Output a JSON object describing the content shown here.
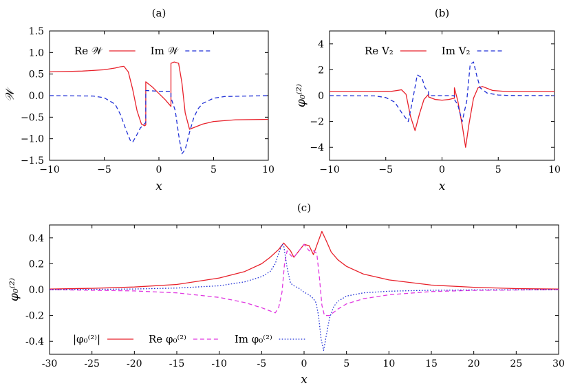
{
  "chart_data": [
    {
      "type": "line",
      "panel": "(a)",
      "xlabel": "x",
      "ylabel": "𝒲",
      "xlim": [
        -10,
        10
      ],
      "ylim": [
        -1.5,
        1.5
      ],
      "xticks": [
        -10,
        -5,
        0,
        5,
        10
      ],
      "xtick_labels": [
        "−10",
        "−5",
        "0",
        "5",
        "10"
      ],
      "yticks": [
        -1.5,
        -1.0,
        -0.5,
        0.0,
        0.5,
        1.0,
        1.5
      ],
      "ytick_labels": [
        "−1.5",
        "−1.0",
        "−0.5",
        "0.0",
        "0.5",
        "1.0",
        "1.5"
      ],
      "legend_position": "top",
      "series": [
        {
          "name": "Re 𝒲",
          "color": "#e8202a",
          "dash": "solid",
          "x": [
            -10,
            -7,
            -5,
            -4,
            -3.5,
            -3.2,
            -2.8,
            -2.4,
            -2.0,
            -1.6,
            -1.3,
            -1.2,
            -1.2,
            -0.6,
            0,
            0.6,
            1.1,
            1.1,
            1.4,
            1.8,
            2.1,
            2.4,
            2.8,
            3.2,
            4,
            5,
            7,
            10
          ],
          "y": [
            0.55,
            0.57,
            0.6,
            0.64,
            0.67,
            0.68,
            0.55,
            0.15,
            -0.35,
            -0.66,
            -0.7,
            -0.68,
            0.32,
            0.2,
            0.05,
            -0.1,
            -0.25,
            0.75,
            0.78,
            0.75,
            0.3,
            -0.4,
            -0.78,
            -0.74,
            -0.66,
            -0.6,
            -0.56,
            -0.55
          ]
        },
        {
          "name": "Im 𝒲",
          "color": "#1f2fd6",
          "dash": "dashed",
          "x": [
            -10,
            -6,
            -5,
            -4,
            -3.5,
            -3,
            -2.6,
            -2.4,
            -2.1,
            -1.7,
            -1.3,
            -1.2,
            -1.2,
            0,
            1.1,
            1.1,
            1.5,
            1.8,
            2.1,
            2.4,
            2.8,
            3.2,
            3.6,
            4,
            5,
            6,
            10
          ],
          "y": [
            0.0,
            -0.01,
            -0.05,
            -0.2,
            -0.45,
            -0.8,
            -1.05,
            -1.08,
            -0.95,
            -0.75,
            -0.65,
            -0.62,
            0.12,
            0.1,
            0.1,
            -0.05,
            -0.35,
            -0.9,
            -1.35,
            -1.25,
            -0.85,
            -0.5,
            -0.3,
            -0.18,
            -0.06,
            -0.02,
            0.0
          ]
        }
      ]
    },
    {
      "type": "line",
      "panel": "(b)",
      "xlabel": "x",
      "ylabel": "φ₀⁽²⁾",
      "xlim": [
        -10,
        10
      ],
      "ylim": [
        -5,
        5
      ],
      "xticks": [
        -10,
        -5,
        0,
        5,
        10
      ],
      "xtick_labels": [
        "−10",
        "−5",
        "0",
        "5",
        "10"
      ],
      "yticks": [
        -4,
        -2,
        0,
        2,
        4
      ],
      "ytick_labels": [
        "−4",
        "−2",
        "0",
        "2",
        "4"
      ],
      "legend_position": "top",
      "series": [
        {
          "name": "Re V₂",
          "color": "#e8202a",
          "dash": "solid",
          "x": [
            -10,
            -6,
            -4.5,
            -3.6,
            -3.2,
            -2.8,
            -2.4,
            -2.0,
            -1.6,
            -1.2,
            -1.2,
            -0.6,
            0,
            0.6,
            1.1,
            1.1,
            1.4,
            1.8,
            2.1,
            2.4,
            2.8,
            3.2,
            3.6,
            4.5,
            6,
            10
          ],
          "y": [
            0.3,
            0.3,
            0.33,
            0.45,
            0.1,
            -1.6,
            -2.7,
            -1.4,
            -0.3,
            0.1,
            -0.1,
            -0.3,
            -0.35,
            -0.3,
            -0.2,
            0.6,
            -0.4,
            -2.3,
            -4.0,
            -2.2,
            -0.2,
            0.6,
            0.7,
            0.4,
            0.3,
            0.3
          ]
        },
        {
          "name": "Im V₂",
          "color": "#1f2fd6",
          "dash": "dashed",
          "x": [
            -10,
            -6,
            -5,
            -4.2,
            -3.6,
            -3.0,
            -2.6,
            -2.2,
            -1.8,
            -1.5,
            -1.2,
            -1.2,
            1.1,
            1.1,
            1.4,
            1.8,
            2.2,
            2.5,
            2.8,
            3.1,
            3.4,
            4,
            5,
            6,
            10
          ],
          "y": [
            0.0,
            -0.02,
            -0.15,
            -0.5,
            -1.3,
            -2.0,
            -0.3,
            1.6,
            1.4,
            0.6,
            0.3,
            0.0,
            0.0,
            -0.3,
            -0.7,
            -2.0,
            -0.4,
            2.4,
            2.6,
            1.5,
            0.6,
            0.2,
            0.05,
            0.01,
            0.0
          ]
        }
      ]
    },
    {
      "type": "line",
      "panel": "(c)",
      "xlabel": "x",
      "ylabel": "φ₀⁽²⁾",
      "xlim": [
        -30,
        30
      ],
      "ylim": [
        -0.5,
        0.5
      ],
      "xticks": [
        -30,
        -25,
        -20,
        -15,
        -10,
        -5,
        0,
        5,
        10,
        15,
        20,
        25,
        30
      ],
      "xtick_labels": [
        "-30",
        "-25",
        "-20",
        "-15",
        "-10",
        "-5",
        "0",
        "5",
        "10",
        "15",
        "20",
        "25",
        "30"
      ],
      "yticks": [
        -0.4,
        -0.2,
        0.0,
        0.2,
        0.4
      ],
      "ytick_labels": [
        "-0.4",
        "-0.2",
        "0.0",
        "0.2",
        "0.4"
      ],
      "legend_position": "bottom-left",
      "series": [
        {
          "name": "|φ₀⁽²⁾|",
          "color": "#e8202a",
          "dash": "solid",
          "x": [
            -30,
            -25,
            -20,
            -15,
            -10,
            -7,
            -5,
            -4,
            -3,
            -2.4,
            -1.6,
            -1.2,
            -0.6,
            0,
            0.6,
            1.1,
            1.6,
            2.1,
            2.6,
            3.2,
            4,
            5,
            7,
            10,
            15,
            20,
            25,
            30
          ],
          "y": [
            0.005,
            0.01,
            0.02,
            0.04,
            0.09,
            0.14,
            0.2,
            0.25,
            0.31,
            0.36,
            0.3,
            0.25,
            0.3,
            0.35,
            0.34,
            0.27,
            0.36,
            0.45,
            0.38,
            0.29,
            0.23,
            0.18,
            0.12,
            0.075,
            0.035,
            0.018,
            0.008,
            0.004
          ]
        },
        {
          "name": "Re φ₀⁽²⁾",
          "color": "#e038e0",
          "dash": "dashed",
          "x": [
            -30,
            -20,
            -15,
            -10,
            -7,
            -5,
            -4,
            -3.4,
            -3,
            -2.6,
            -2.3,
            -2.0,
            -1.5,
            -1.2,
            -0.6,
            0,
            0.6,
            1.1,
            1.5,
            1.8,
            2.1,
            2.4,
            3,
            4,
            5,
            7,
            10,
            15,
            20,
            30
          ],
          "y": [
            0.0,
            -0.01,
            -0.025,
            -0.06,
            -0.1,
            -0.14,
            -0.165,
            -0.18,
            -0.14,
            -0.02,
            0.2,
            0.3,
            0.26,
            0.25,
            0.3,
            0.35,
            0.3,
            0.3,
            0.28,
            0.1,
            -0.12,
            -0.2,
            -0.2,
            -0.15,
            -0.11,
            -0.07,
            -0.04,
            -0.015,
            -0.006,
            0.0
          ]
        },
        {
          "name": "Im φ₀⁽²⁾",
          "color": "#1f2fd6",
          "dash": "dotted",
          "x": [
            -30,
            -20,
            -15,
            -10,
            -7,
            -5,
            -4,
            -3.4,
            -3,
            -2.6,
            -2.4,
            -2.0,
            -1.6,
            -1.2,
            -0.6,
            0,
            0.6,
            1.1,
            1.4,
            1.7,
            2.0,
            2.3,
            2.6,
            3,
            3.5,
            4,
            5,
            7,
            10,
            15,
            20,
            30
          ],
          "y": [
            0.0,
            0.005,
            0.012,
            0.03,
            0.06,
            0.1,
            0.14,
            0.2,
            0.28,
            0.35,
            0.34,
            0.17,
            0.05,
            0.03,
            0.01,
            -0.02,
            -0.04,
            -0.07,
            -0.1,
            -0.2,
            -0.38,
            -0.47,
            -0.36,
            -0.22,
            -0.13,
            -0.09,
            -0.05,
            -0.025,
            -0.012,
            -0.005,
            -0.002,
            0.0
          ]
        }
      ]
    }
  ]
}
